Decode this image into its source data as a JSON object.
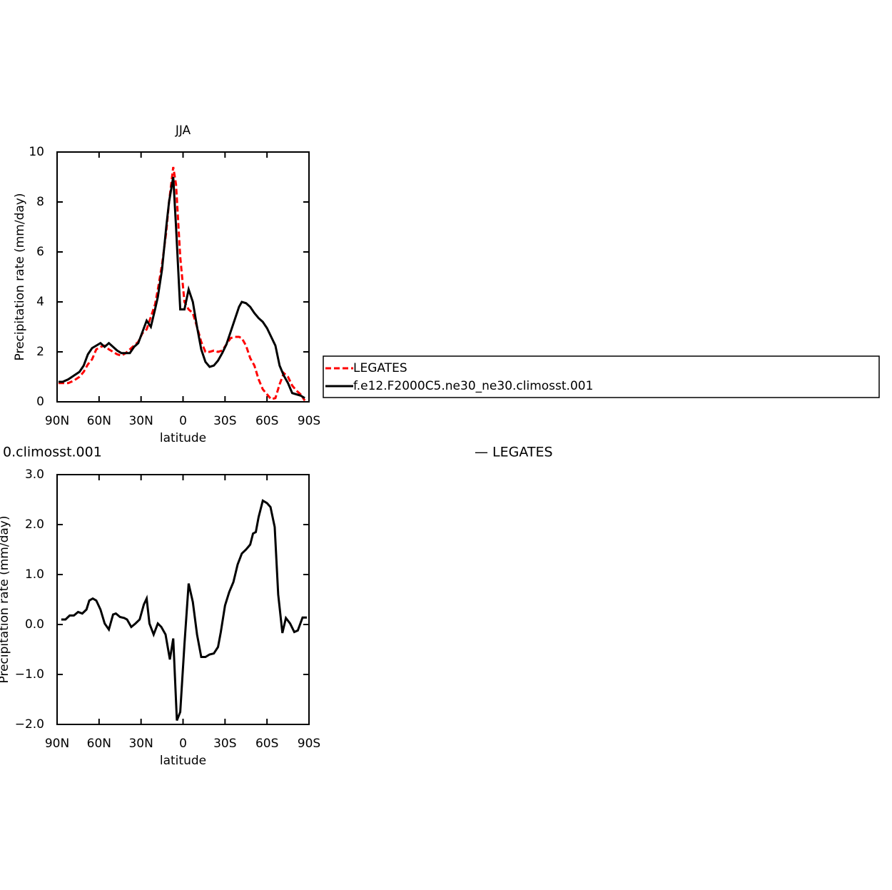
{
  "chart_data": [
    {
      "type": "line",
      "title": "JJA",
      "xlabel": "latitude",
      "ylabel": "Precipitation rate (mm/day)",
      "xlim": [
        90,
        -90
      ],
      "xticks": [
        {
          "value": 90,
          "label": "90N"
        },
        {
          "value": 60,
          "label": "60N"
        },
        {
          "value": 30,
          "label": "30N"
        },
        0,
        {
          "value": -30,
          "label": "30S"
        },
        {
          "value": -60,
          "label": "60S"
        },
        {
          "value": -90,
          "label": "90S"
        }
      ],
      "ylim": [
        0,
        10
      ],
      "yticks": [
        0,
        2,
        4,
        6,
        8,
        10
      ],
      "legend": "right",
      "x": [
        89,
        86,
        82,
        78,
        74,
        71,
        68,
        65,
        62,
        59,
        56,
        53,
        50,
        47,
        44,
        41,
        38,
        35,
        32,
        29,
        26,
        23,
        20,
        18,
        15,
        12,
        10,
        7,
        5,
        2,
        -1,
        -4,
        -7,
        -10,
        -13,
        -16,
        -19,
        -22,
        -25,
        -28,
        -31,
        -34,
        -37,
        -40,
        -42,
        -45,
        -48,
        -51,
        -54,
        -57,
        -60,
        -63,
        -66,
        -69,
        -72,
        -75,
        -78,
        -81,
        -84,
        -87
      ],
      "series": [
        {
          "name": "LEGATES",
          "color": "#ff0000",
          "linestyle": "dashed",
          "values": [
            0.75,
            0.75,
            0.75,
            0.85,
            1.0,
            1.2,
            1.5,
            1.7,
            2.1,
            2.2,
            2.25,
            2.1,
            2.0,
            1.9,
            1.85,
            1.95,
            2.1,
            2.25,
            2.4,
            2.75,
            2.9,
            3.4,
            3.9,
            4.5,
            5.5,
            6.8,
            8.0,
            9.4,
            8.7,
            5.8,
            4.0,
            3.7,
            3.55,
            3.0,
            2.4,
            2.0,
            2.0,
            2.05,
            2.0,
            2.05,
            2.3,
            2.55,
            2.6,
            2.6,
            2.55,
            2.25,
            1.75,
            1.45,
            0.9,
            0.5,
            0.3,
            0.1,
            0.15,
            0.7,
            1.15,
            1.0,
            0.65,
            0.45,
            0.3,
            0.05
          ]
        },
        {
          "name": "f.e12.F2000C5.ne30_ne30.climosst.001",
          "color": "#000000",
          "linestyle": "solid",
          "values": [
            0.8,
            0.8,
            0.9,
            1.05,
            1.2,
            1.45,
            1.9,
            2.15,
            2.25,
            2.35,
            2.2,
            2.35,
            2.2,
            2.05,
            1.95,
            1.95,
            1.95,
            2.2,
            2.35,
            2.8,
            3.25,
            3.0,
            3.7,
            4.2,
            5.3,
            7.0,
            8.0,
            9.0,
            7.0,
            3.7,
            3.7,
            4.5,
            4.0,
            3.0,
            2.1,
            1.6,
            1.4,
            1.45,
            1.65,
            1.95,
            2.3,
            2.8,
            3.3,
            3.8,
            4.0,
            3.95,
            3.8,
            3.55,
            3.35,
            3.2,
            2.95,
            2.6,
            2.25,
            1.45,
            1.05,
            0.75,
            0.35,
            0.3,
            0.25,
            0.15
          ]
        }
      ]
    },
    {
      "type": "line",
      "left_title": "0.climosst.001",
      "right_title": "— LEGATES",
      "xlabel": "latitude",
      "ylabel": "Precipitation rate (mm/day)",
      "xlim": [
        90,
        -90
      ],
      "xticks": [
        {
          "value": 90,
          "label": "90N"
        },
        {
          "value": 60,
          "label": "60N"
        },
        {
          "value": 30,
          "label": "30N"
        },
        0,
        {
          "value": -30,
          "label": "30S"
        },
        {
          "value": -60,
          "label": "60S"
        },
        {
          "value": -90,
          "label": "90S"
        }
      ],
      "ylim": [
        -2,
        3
      ],
      "yticks": [
        {
          "value": -2,
          "label": "−2.0"
        },
        {
          "value": -1,
          "label": "−1.0"
        },
        {
          "value": 0,
          "label": "0.0"
        },
        {
          "value": 1,
          "label": "1.0"
        },
        {
          "value": 2,
          "label": "2.0"
        },
        {
          "value": 3,
          "label": "3.0"
        }
      ],
      "x": [
        87,
        84,
        81,
        78,
        75,
        72,
        69,
        67,
        64.5,
        62,
        59,
        56,
        53,
        50,
        48,
        45,
        42,
        40,
        37,
        34,
        31,
        28,
        26,
        24,
        21,
        18,
        15.5,
        12.5,
        9.4,
        7,
        4.4,
        2,
        -1,
        -4,
        -7,
        -10,
        -13,
        -16,
        -19,
        -22,
        -25,
        -27,
        -30,
        -33,
        -36,
        -39,
        -42,
        -45,
        -48,
        -50,
        -52,
        -54,
        -57,
        -60,
        -62.5,
        -65.5,
        -68,
        -71,
        -73.5,
        -76.5,
        -79.5,
        -82,
        -85.4,
        -88.5
      ],
      "series": [
        {
          "color": "#000000",
          "linestyle": "solid",
          "values": [
            0.1,
            0.1,
            0.18,
            0.18,
            0.25,
            0.22,
            0.3,
            0.48,
            0.52,
            0.48,
            0.3,
            0.02,
            -0.1,
            0.2,
            0.22,
            0.15,
            0.13,
            0.1,
            -0.05,
            0.02,
            0.1,
            0.4,
            0.52,
            0.02,
            -0.2,
            0.02,
            -0.05,
            -0.2,
            -0.7,
            -0.28,
            -1.92,
            -1.75,
            -0.4,
            0.82,
            0.45,
            -0.2,
            -0.65,
            -0.65,
            -0.6,
            -0.58,
            -0.45,
            -0.15,
            0.38,
            0.65,
            0.85,
            1.2,
            1.42,
            1.5,
            1.6,
            1.82,
            1.85,
            2.15,
            2.48,
            2.43,
            2.35,
            1.95,
            0.6,
            -0.17,
            0.13,
            0.02,
            -0.15,
            -0.12,
            0.14,
            0.14
          ]
        }
      ]
    }
  ]
}
